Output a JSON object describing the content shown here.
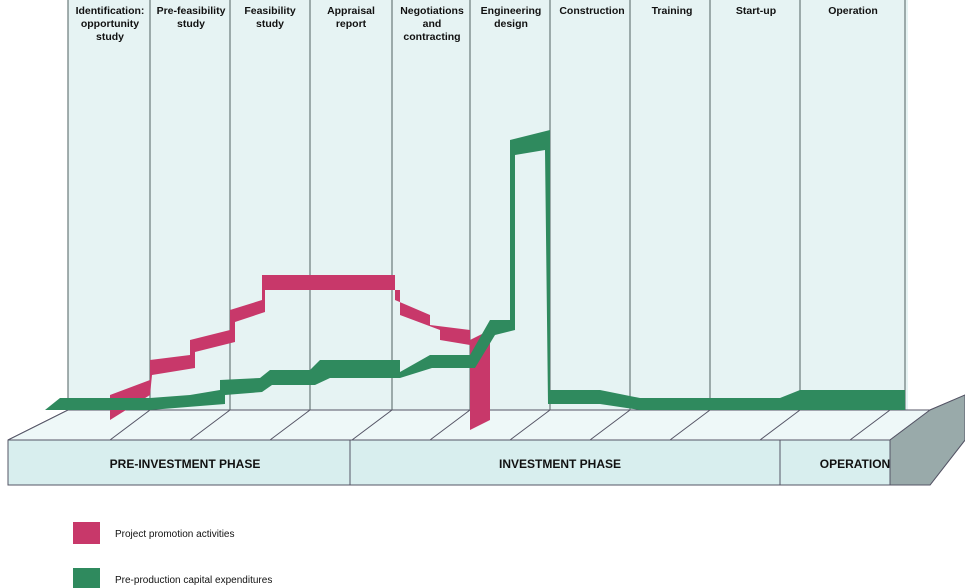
{
  "stages": [
    [
      "Identification:",
      "opportunity",
      "study"
    ],
    [
      "Pre-feasibility",
      "study"
    ],
    [
      "Feasibility",
      "study"
    ],
    [
      "Appraisal",
      "report"
    ],
    [
      "Negotiations",
      "and",
      "contracting"
    ],
    [
      "Engineering",
      "design"
    ],
    [
      "Construction"
    ],
    [
      "Training"
    ],
    [
      "Start-up"
    ],
    [
      "Operation"
    ]
  ],
  "phases": [
    "PRE-INVESTMENT PHASE",
    "INVESTMENT PHASE",
    "OPERATION"
  ],
  "legend": [
    {
      "label": "Project promotion activities",
      "color": "#c8386a"
    },
    {
      "label": "Pre-production capital expenditures",
      "color": "#2f8a5e"
    }
  ]
}
